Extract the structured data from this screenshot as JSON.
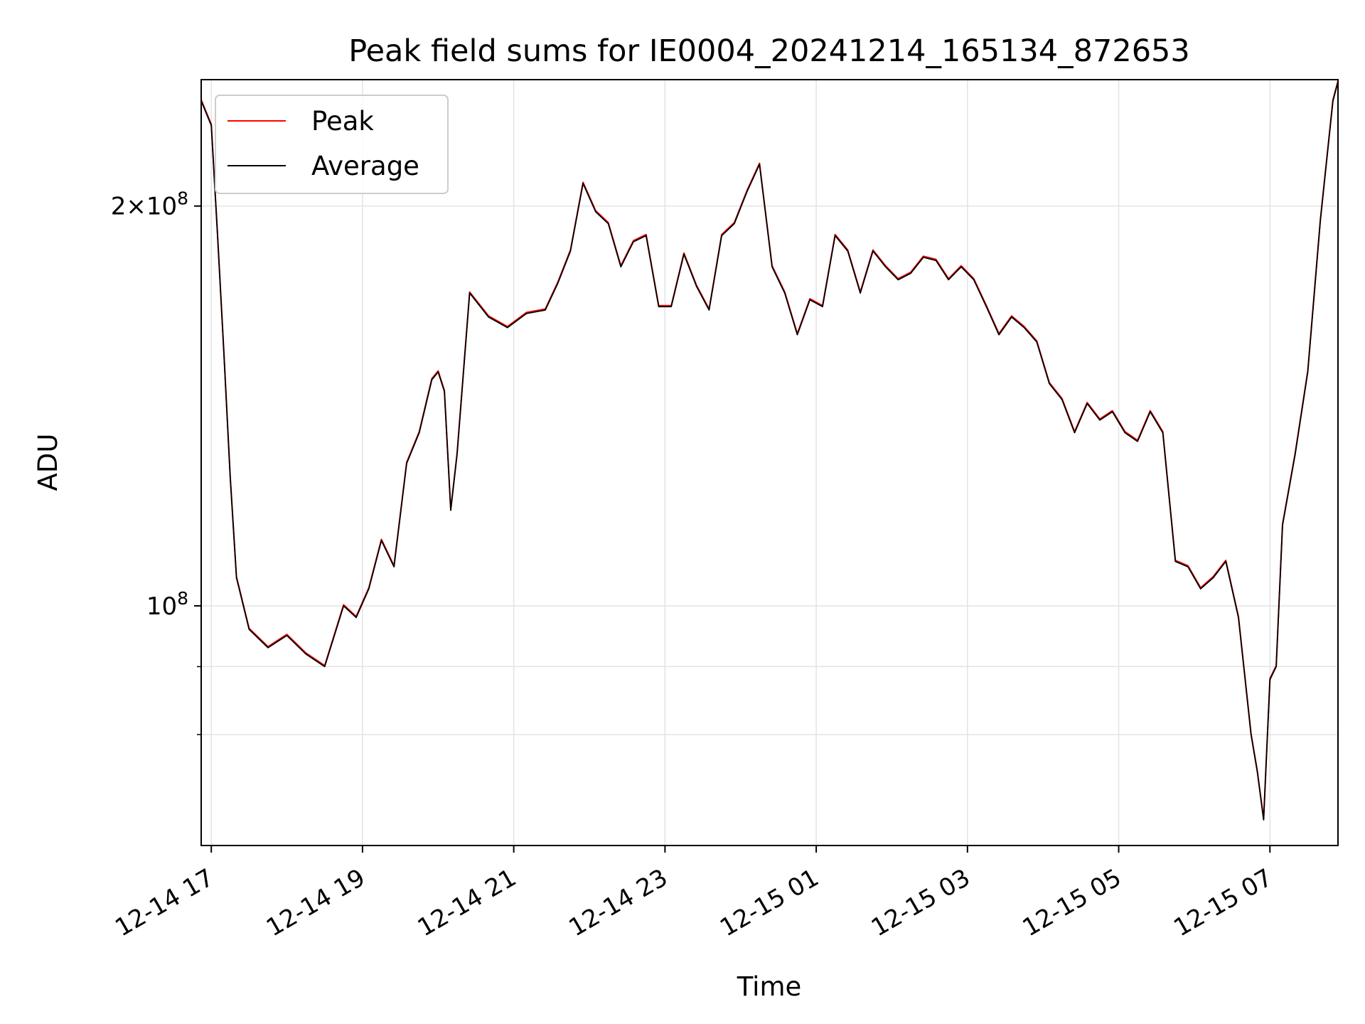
{
  "chart_data": {
    "type": "line",
    "title": "Peak field sums for IE0004_20241214_165134_872653",
    "xlabel": "Time",
    "ylabel": "ADU",
    "yscale": "log",
    "ylim": [
      66000000,
      249000000
    ],
    "xlim": [
      "2024-12-14 16:52",
      "2024-12-15 07:54"
    ],
    "grid": true,
    "legend_position": "upper-left",
    "x_ticks": [
      "12-14 17",
      "12-14 19",
      "12-14 21",
      "12-14 23",
      "12-15 01",
      "12-15 03",
      "12-15 05",
      "12-15 07"
    ],
    "y_ticks": [
      {
        "label": "2 × 10^8",
        "value": 200000000
      },
      {
        "label": "10^8",
        "value": 100000000
      }
    ],
    "y_minor_ticks": [
      90000000,
      80000000
    ],
    "series": [
      {
        "name": "Peak",
        "color": "#ff0000"
      },
      {
        "name": "Average",
        "color": "#000000"
      }
    ],
    "x": [
      "2024-12-14 16:52",
      "2024-12-14 17:00",
      "2024-12-14 17:05",
      "2024-12-14 17:10",
      "2024-12-14 17:15",
      "2024-12-14 17:20",
      "2024-12-14 17:30",
      "2024-12-14 17:45",
      "2024-12-14 18:00",
      "2024-12-14 18:15",
      "2024-12-14 18:30",
      "2024-12-14 18:45",
      "2024-12-14 18:55",
      "2024-12-14 19:05",
      "2024-12-14 19:15",
      "2024-12-14 19:25",
      "2024-12-14 19:35",
      "2024-12-14 19:45",
      "2024-12-14 19:55",
      "2024-12-14 20:00",
      "2024-12-14 20:05",
      "2024-12-14 20:10",
      "2024-12-14 20:15",
      "2024-12-14 20:25",
      "2024-12-14 20:40",
      "2024-12-14 20:55",
      "2024-12-14 21:10",
      "2024-12-14 21:25",
      "2024-12-14 21:35",
      "2024-12-14 21:45",
      "2024-12-14 21:55",
      "2024-12-14 22:05",
      "2024-12-14 22:15",
      "2024-12-14 22:25",
      "2024-12-14 22:35",
      "2024-12-14 22:45",
      "2024-12-14 22:55",
      "2024-12-14 23:05",
      "2024-12-14 23:15",
      "2024-12-14 23:25",
      "2024-12-14 23:35",
      "2024-12-14 23:45",
      "2024-12-14 23:55",
      "2024-12-15 00:05",
      "2024-12-15 00:15",
      "2024-12-15 00:25",
      "2024-12-15 00:35",
      "2024-12-15 00:45",
      "2024-12-15 00:55",
      "2024-12-15 01:05",
      "2024-12-15 01:15",
      "2024-12-15 01:25",
      "2024-12-15 01:35",
      "2024-12-15 01:45",
      "2024-12-15 01:55",
      "2024-12-15 02:05",
      "2024-12-15 02:15",
      "2024-12-15 02:25",
      "2024-12-15 02:35",
      "2024-12-15 02:45",
      "2024-12-15 02:55",
      "2024-12-15 03:05",
      "2024-12-15 03:15",
      "2024-12-15 03:25",
      "2024-12-15 03:35",
      "2024-12-15 03:45",
      "2024-12-15 03:55",
      "2024-12-15 04:05",
      "2024-12-15 04:15",
      "2024-12-15 04:25",
      "2024-12-15 04:35",
      "2024-12-15 04:45",
      "2024-12-15 04:55",
      "2024-12-15 05:05",
      "2024-12-15 05:15",
      "2024-12-15 05:25",
      "2024-12-15 05:35",
      "2024-12-15 05:45",
      "2024-12-15 05:55",
      "2024-12-15 06:05",
      "2024-12-15 06:15",
      "2024-12-15 06:25",
      "2024-12-15 06:35",
      "2024-12-15 06:45",
      "2024-12-15 06:50",
      "2024-12-15 06:55",
      "2024-12-15 07:00",
      "2024-12-15 07:05",
      "2024-12-15 07:10",
      "2024-12-15 07:20",
      "2024-12-15 07:30",
      "2024-12-15 07:40",
      "2024-12-15 07:50",
      "2024-12-15 07:54"
    ],
    "values": [
      240000000,
      230000000,
      190000000,
      155000000,
      125000000,
      105000000,
      96000000,
      93000000,
      95000000,
      92000000,
      90000000,
      100000000,
      98000000,
      103000000,
      112000000,
      107000000,
      128000000,
      135000000,
      148000000,
      150000000,
      145000000,
      118000000,
      130000000,
      172000000,
      165000000,
      162000000,
      166000000,
      167000000,
      175000000,
      185000000,
      208000000,
      198000000,
      194000000,
      180000000,
      188000000,
      190000000,
      168000000,
      168000000,
      184000000,
      174000000,
      167000000,
      190000000,
      194000000,
      205000000,
      215000000,
      180000000,
      172000000,
      160000000,
      170000000,
      168000000,
      190000000,
      185000000,
      172000000,
      185000000,
      180000000,
      176000000,
      178000000,
      183000000,
      182000000,
      176000000,
      180000000,
      176000000,
      168000000,
      160000000,
      165000000,
      162000000,
      158000000,
      147000000,
      143000000,
      135000000,
      142000000,
      138000000,
      140000000,
      135000000,
      133000000,
      140000000,
      135000000,
      108000000,
      107000000,
      103000000,
      105000000,
      108000000,
      98000000,
      80000000,
      75000000,
      69000000,
      88000000,
      90000000,
      115000000,
      130000000,
      150000000,
      195000000,
      240000000,
      248000000
    ]
  }
}
